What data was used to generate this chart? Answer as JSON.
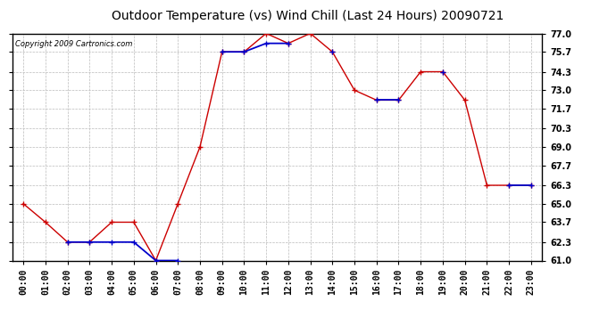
{
  "title": "Outdoor Temperature (vs) Wind Chill (Last 24 Hours) 20090721",
  "copyright": "Copyright 2009 Cartronics.com",
  "x_labels": [
    "00:00",
    "01:00",
    "02:00",
    "03:00",
    "04:00",
    "05:00",
    "06:00",
    "07:00",
    "08:00",
    "09:00",
    "10:00",
    "11:00",
    "12:00",
    "13:00",
    "14:00",
    "15:00",
    "16:00",
    "17:00",
    "18:00",
    "19:00",
    "20:00",
    "21:00",
    "22:00",
    "23:00"
  ],
  "temp": [
    65.0,
    63.7,
    62.3,
    62.3,
    63.7,
    63.7,
    61.0,
    65.0,
    69.0,
    75.7,
    75.7,
    77.0,
    76.3,
    77.0,
    75.7,
    73.0,
    72.3,
    72.3,
    74.3,
    74.3,
    72.3,
    66.3,
    66.3,
    66.3
  ],
  "windchill": [
    null,
    null,
    62.3,
    62.3,
    62.3,
    62.3,
    61.0,
    61.0,
    null,
    75.7,
    75.7,
    76.3,
    76.3,
    null,
    75.7,
    null,
    72.3,
    72.3,
    null,
    74.3,
    null,
    null,
    66.3,
    66.3
  ],
  "temp_color": "#cc0000",
  "windchill_color": "#0000cc",
  "bg_color": "#ffffff",
  "plot_bg_color": "#ffffff",
  "grid_color": "#bbbbbb",
  "ylim": [
    61.0,
    77.0
  ],
  "yticks": [
    61.0,
    62.3,
    63.7,
    65.0,
    66.3,
    67.7,
    69.0,
    70.3,
    71.7,
    73.0,
    74.3,
    75.7,
    77.0
  ],
  "title_fontsize": 10,
  "copyright_fontsize": 6,
  "tick_fontsize": 7
}
